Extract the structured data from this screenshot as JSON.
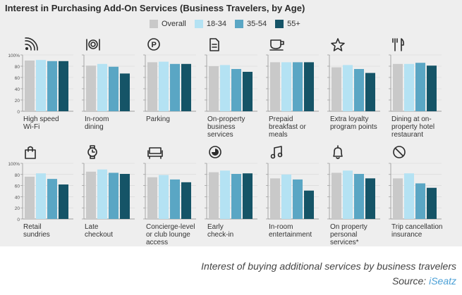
{
  "title": "Interest in Purchasing Add-On Services (Business Travelers, by Age)",
  "caption": "Interest of buying additional services by business travelers",
  "source_label": "Source:",
  "source_name": "iSeatz",
  "colors": {
    "Overall": "#c9c9c9",
    "18-34": "#b4e2f3",
    "35-54": "#5aa6c4",
    "55+": "#155467"
  },
  "chart_data": {
    "type": "bar",
    "title": "Interest in Purchasing Add-On Services (Business Travelers, by Age)",
    "ylim": [
      0,
      100
    ],
    "yticks": [
      "0",
      "20",
      "40",
      "60",
      "80",
      "100%"
    ],
    "legend_position": "top",
    "series_names": [
      "Overall",
      "18-34",
      "35-54",
      "55+"
    ],
    "panels": [
      {
        "label": [
          "High speed",
          "Wi-Fi"
        ],
        "icon": "wifi-icon",
        "values": [
          90,
          91,
          89,
          89
        ]
      },
      {
        "label": [
          "In-room",
          "dining"
        ],
        "icon": "dining-icon",
        "values": [
          81,
          84,
          79,
          67
        ]
      },
      {
        "label": [
          "Parking"
        ],
        "icon": "parking-icon",
        "values": [
          87,
          88,
          84,
          84
        ]
      },
      {
        "label": [
          "On-property",
          "business",
          "services"
        ],
        "icon": "document-icon",
        "values": [
          80,
          82,
          75,
          70
        ]
      },
      {
        "label": [
          "Prepaid",
          "breakfast or",
          "meals"
        ],
        "icon": "coffee-icon",
        "values": [
          87,
          87,
          87,
          87
        ]
      },
      {
        "label": [
          "Extra loyalty",
          "program points"
        ],
        "icon": "star-icon",
        "values": [
          78,
          82,
          75,
          68
        ]
      },
      {
        "label": [
          "Dining at on-",
          "property hotel",
          "restaurant"
        ],
        "icon": "cutlery-icon",
        "values": [
          84,
          84,
          86,
          81
        ]
      },
      {
        "label": [
          "Retail",
          "sundries"
        ],
        "icon": "bag-icon",
        "values": [
          76,
          82,
          72,
          62
        ]
      },
      {
        "label": [
          "Late",
          "checkout"
        ],
        "icon": "watch-icon",
        "values": [
          85,
          89,
          83,
          81
        ]
      },
      {
        "label": [
          "Concierge-level",
          "or club lounge",
          "access"
        ],
        "icon": "sofa-icon",
        "values": [
          75,
          79,
          71,
          66
        ]
      },
      {
        "label": [
          "Early",
          "check-in"
        ],
        "icon": "clock-icon",
        "values": [
          84,
          87,
          81,
          82
        ]
      },
      {
        "label": [
          "In-room",
          "entertainment"
        ],
        "icon": "music-icon",
        "values": [
          73,
          80,
          71,
          51
        ]
      },
      {
        "label": [
          "On property",
          "personal",
          "services*"
        ],
        "icon": "bell-icon",
        "values": [
          83,
          87,
          81,
          73
        ]
      },
      {
        "label": [
          "Trip cancellation",
          "insurance"
        ],
        "icon": "no-sign-icon",
        "values": [
          73,
          82,
          64,
          56
        ]
      }
    ]
  }
}
